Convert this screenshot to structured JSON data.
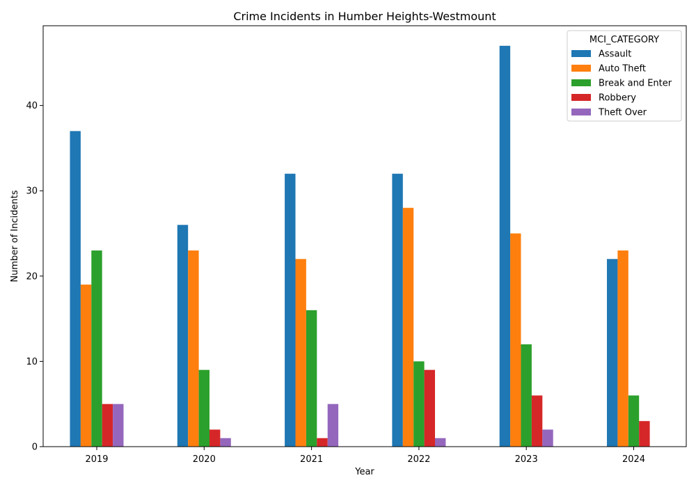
{
  "chart_data": {
    "type": "bar",
    "title": "Crime Incidents in Humber Heights-Westmount",
    "xlabel": "Year",
    "ylabel": "Number of Incidents",
    "categories": [
      "2019",
      "2020",
      "2021",
      "2022",
      "2023",
      "2024"
    ],
    "ylim": [
      0,
      49.35
    ],
    "yticks": [
      0,
      10,
      20,
      30,
      40
    ],
    "legend": {
      "title": "MCI_CATEGORY",
      "placement": "top-right"
    },
    "grid": false,
    "series": [
      {
        "name": "Assault",
        "color": "#1f77b4",
        "values": [
          37,
          26,
          32,
          32,
          47,
          22
        ]
      },
      {
        "name": "Auto Theft",
        "color": "#ff7f0e",
        "values": [
          19,
          23,
          22,
          28,
          25,
          23
        ]
      },
      {
        "name": "Break and Enter",
        "color": "#2ca02c",
        "values": [
          23,
          9,
          16,
          10,
          12,
          6
        ]
      },
      {
        "name": "Robbery",
        "color": "#d62728",
        "values": [
          5,
          2,
          1,
          9,
          6,
          3
        ]
      },
      {
        "name": "Theft Over",
        "color": "#9467bd",
        "values": [
          5,
          1,
          5,
          1,
          2,
          0
        ]
      }
    ]
  }
}
